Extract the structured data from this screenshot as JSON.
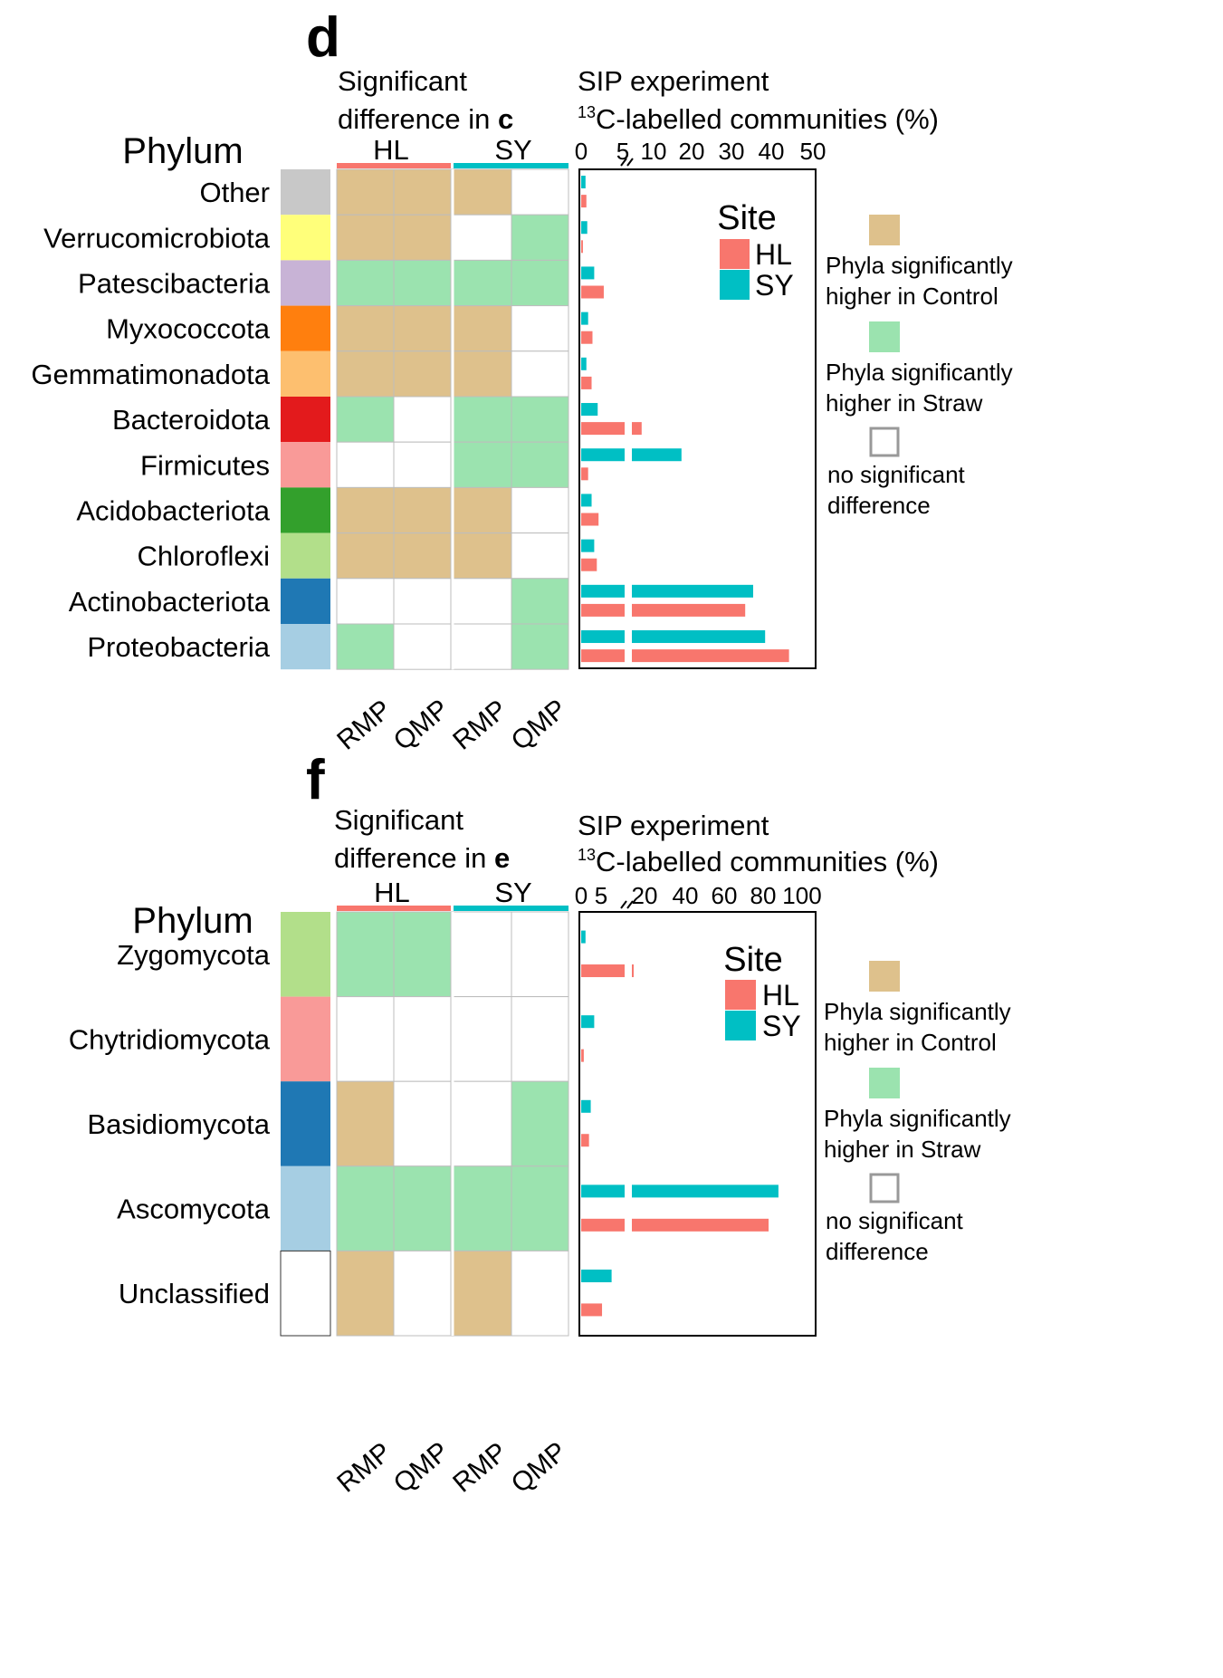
{
  "colors": {
    "HL": "#F8766D",
    "SY": "#00BFC4",
    "control": "#DEC18C",
    "straw": "#9BE3AF",
    "none": "#FFFFFF",
    "grid": "#BDBDBD"
  },
  "chart_data": [
    {
      "type": "bar",
      "panel_label": "d",
      "sig_title_line1": "Significant",
      "sig_title_line2_prefix": "difference in ",
      "sig_title_line2_ref": "c",
      "phylum_header": "Phylum",
      "site_headers": [
        "HL",
        "SY"
      ],
      "column_labels": [
        "RMP",
        "QMP",
        "RMP",
        "QMP"
      ],
      "sip_title_line1": "SIP experiment",
      "sip_sup": "13",
      "sip_title_line2": "C-labelled communities (%)",
      "x_ticks_low": [
        "0",
        "5"
      ],
      "x_ticks_high": [
        "10",
        "20",
        "30",
        "40",
        "50"
      ],
      "xlim": [
        0,
        50
      ],
      "axis_break": 5,
      "categories": [
        "Other",
        "Verrucomicrobiota",
        "Patescibacteria",
        "Myxococcota",
        "Gemmatimonadota",
        "Bacteroidota",
        "Firmicutes",
        "Acidobacteriota",
        "Chloroflexi",
        "Actinobacteriota",
        "Proteobacteria"
      ],
      "phylum_colors": [
        "#C8C8C8",
        "#FFFF7A",
        "#C8B3D6",
        "#FF7F0E",
        "#FDBF6F",
        "#E31A1C",
        "#F99A98",
        "#33A02C",
        "#B2DF8A",
        "#1F78B4",
        "#A6CEE3"
      ],
      "significance": [
        [
          "control",
          "control",
          "control",
          "none"
        ],
        [
          "control",
          "control",
          "none",
          "straw"
        ],
        [
          "straw",
          "straw",
          "straw",
          "straw"
        ],
        [
          "control",
          "control",
          "control",
          "none"
        ],
        [
          "control",
          "control",
          "control",
          "none"
        ],
        [
          "straw",
          "none",
          "straw",
          "straw"
        ],
        [
          "none",
          "none",
          "straw",
          "straw"
        ],
        [
          "control",
          "control",
          "control",
          "none"
        ],
        [
          "control",
          "control",
          "control",
          "none"
        ],
        [
          "none",
          "none",
          "none",
          "straw"
        ],
        [
          "straw",
          "none",
          "none",
          "straw"
        ]
      ],
      "series": [
        {
          "name": "SY",
          "values": [
            0.5,
            0.7,
            1.5,
            0.8,
            0.6,
            1.9,
            17,
            1.2,
            1.5,
            35,
            38
          ]
        },
        {
          "name": "HL",
          "values": [
            0.6,
            0.2,
            2.6,
            1.3,
            1.2,
            7,
            0.8,
            2.0,
            1.8,
            33,
            44
          ]
        }
      ],
      "legend": {
        "title": "Site",
        "entries": [
          "HL",
          "SY"
        ],
        "key_control_line1": "Phyla significantly",
        "key_control_line2": "higher in Control",
        "key_straw_line1": "Phyla significantly",
        "key_straw_line2": "higher in Straw",
        "key_none_line1": "no significant",
        "key_none_line2": "difference"
      }
    },
    {
      "type": "bar",
      "panel_label": "f",
      "sig_title_line1": "Significant",
      "sig_title_line2_prefix": "difference in ",
      "sig_title_line2_ref": "e",
      "phylum_header": "Phylum",
      "site_headers": [
        "HL",
        "SY"
      ],
      "column_labels": [
        "RMP",
        "QMP",
        "RMP",
        "QMP"
      ],
      "sip_title_line1": "SIP experiment",
      "sip_sup": "13",
      "sip_title_line2": "C-labelled communities (%)",
      "x_ticks_low": [
        "0",
        "5"
      ],
      "x_ticks_high": [
        "20",
        "40",
        "60",
        "80",
        "100"
      ],
      "xlim": [
        0,
        100
      ],
      "axis_break": 5,
      "categories": [
        "Zygomycota",
        "Chytridiomycota",
        "Basidiomycota",
        "Ascomycota",
        "Unclassified"
      ],
      "phylum_colors": [
        "#B2DF8A",
        "#F99A98",
        "#1F78B4",
        "#A6CEE3",
        "#FFFFFF"
      ],
      "significance": [
        [
          "straw",
          "straw",
          "none",
          "none"
        ],
        [
          "none",
          "none",
          "none",
          "none"
        ],
        [
          "control",
          "none",
          "none",
          "straw"
        ],
        [
          "straw",
          "straw",
          "straw",
          "straw"
        ],
        [
          "control",
          "none",
          "control",
          "none"
        ]
      ],
      "series": [
        {
          "name": "SY",
          "values": [
            0.5,
            1.5,
            1.1,
            88,
            3.5
          ]
        },
        {
          "name": "HL",
          "values": [
            6,
            0.3,
            0.9,
            83,
            2.4
          ]
        }
      ],
      "legend": {
        "title": "Site",
        "entries": [
          "HL",
          "SY"
        ],
        "key_control_line1": "Phyla significantly",
        "key_control_line2": "higher in Control",
        "key_straw_line1": "Phyla significantly",
        "key_straw_line2": "higher in Straw",
        "key_none_line1": "no significant",
        "key_none_line2": "difference"
      }
    }
  ]
}
